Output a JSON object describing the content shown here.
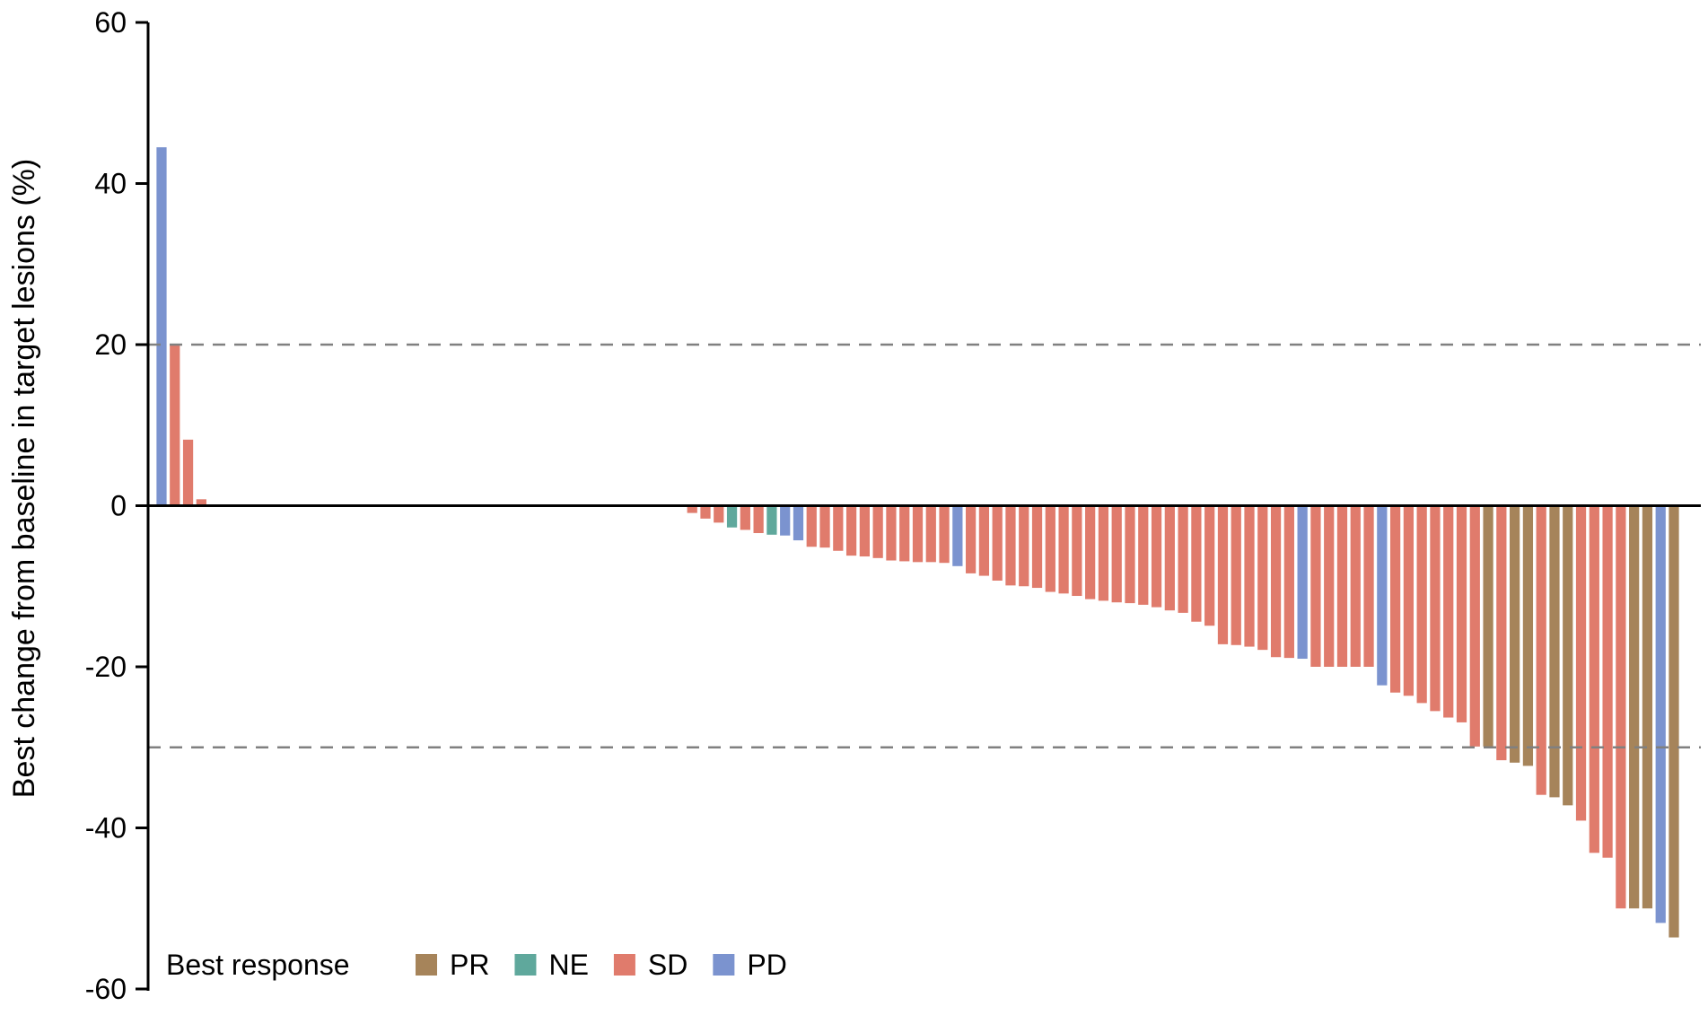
{
  "chart_data": {
    "type": "bar",
    "title": "",
    "xlabel": "",
    "ylabel": "Best change from baseline in target lesions (%)",
    "ylim": [
      -60,
      60
    ],
    "y_ticks": [
      -60,
      -40,
      -20,
      0,
      20,
      40,
      60
    ],
    "reference_lines": [
      20,
      -30
    ],
    "grid": false,
    "legend": {
      "title": "Best response",
      "placement": "bottom-left",
      "entries": [
        {
          "label": "PR",
          "color": "#a6845a"
        },
        {
          "label": "NE",
          "color": "#5fa89c"
        },
        {
          "label": "SD",
          "color": "#e07b6c"
        },
        {
          "label": "PD",
          "color": "#7b93cf"
        }
      ]
    },
    "bars": [
      {
        "v": 44.5,
        "r": "PD"
      },
      {
        "v": 20,
        "r": "SD"
      },
      {
        "v": 8.2,
        "r": "SD"
      },
      {
        "v": 0.8,
        "r": "SD"
      },
      {
        "v": 0,
        "r": "SD"
      },
      {
        "v": 0,
        "r": "SD"
      },
      {
        "v": 0,
        "r": "SD"
      },
      {
        "v": 0,
        "r": "SD"
      },
      {
        "v": 0,
        "r": "SD"
      },
      {
        "v": 0,
        "r": "SD"
      },
      {
        "v": 0,
        "r": "SD"
      },
      {
        "v": 0,
        "r": "SD"
      },
      {
        "v": 0,
        "r": "SD"
      },
      {
        "v": 0,
        "r": "SD"
      },
      {
        "v": 0,
        "r": "SD"
      },
      {
        "v": 0,
        "r": "SD"
      },
      {
        "v": 0,
        "r": "SD"
      },
      {
        "v": 0,
        "r": "SD"
      },
      {
        "v": 0,
        "r": "SD"
      },
      {
        "v": 0,
        "r": "SD"
      },
      {
        "v": 0,
        "r": "SD"
      },
      {
        "v": 0,
        "r": "SD"
      },
      {
        "v": 0,
        "r": "SD"
      },
      {
        "v": 0,
        "r": "SD"
      },
      {
        "v": 0,
        "r": "SD"
      },
      {
        "v": 0,
        "r": "SD"
      },
      {
        "v": 0,
        "r": "SD"
      },
      {
        "v": 0,
        "r": "SD"
      },
      {
        "v": 0,
        "r": "SD"
      },
      {
        "v": 0,
        "r": "SD"
      },
      {
        "v": 0,
        "r": "SD"
      },
      {
        "v": 0,
        "r": "SD"
      },
      {
        "v": 0,
        "r": "SD"
      },
      {
        "v": 0,
        "r": "SD"
      },
      {
        "v": 0,
        "r": "SD"
      },
      {
        "v": 0,
        "r": "SD"
      },
      {
        "v": 0,
        "r": "SD"
      },
      {
        "v": 0,
        "r": "SD"
      },
      {
        "v": 0,
        "r": "SD"
      },
      {
        "v": 0,
        "r": "SD"
      },
      {
        "v": -0.9,
        "r": "SD"
      },
      {
        "v": -1.6,
        "r": "SD"
      },
      {
        "v": -2.1,
        "r": "SD"
      },
      {
        "v": -2.7,
        "r": "NE"
      },
      {
        "v": -3.0,
        "r": "SD"
      },
      {
        "v": -3.4,
        "r": "SD"
      },
      {
        "v": -3.6,
        "r": "NE"
      },
      {
        "v": -3.7,
        "r": "PD"
      },
      {
        "v": -4.3,
        "r": "PD"
      },
      {
        "v": -5.1,
        "r": "SD"
      },
      {
        "v": -5.2,
        "r": "SD"
      },
      {
        "v": -5.6,
        "r": "SD"
      },
      {
        "v": -6.2,
        "r": "SD"
      },
      {
        "v": -6.3,
        "r": "SD"
      },
      {
        "v": -6.5,
        "r": "SD"
      },
      {
        "v": -6.8,
        "r": "SD"
      },
      {
        "v": -6.9,
        "r": "SD"
      },
      {
        "v": -7.0,
        "r": "SD"
      },
      {
        "v": -7.0,
        "r": "SD"
      },
      {
        "v": -7.1,
        "r": "SD"
      },
      {
        "v": -7.5,
        "r": "PD"
      },
      {
        "v": -8.4,
        "r": "SD"
      },
      {
        "v": -8.7,
        "r": "SD"
      },
      {
        "v": -9.3,
        "r": "SD"
      },
      {
        "v": -9.9,
        "r": "SD"
      },
      {
        "v": -10.0,
        "r": "SD"
      },
      {
        "v": -10.2,
        "r": "SD"
      },
      {
        "v": -10.7,
        "r": "SD"
      },
      {
        "v": -10.9,
        "r": "SD"
      },
      {
        "v": -11.2,
        "r": "SD"
      },
      {
        "v": -11.6,
        "r": "SD"
      },
      {
        "v": -11.8,
        "r": "SD"
      },
      {
        "v": -12.0,
        "r": "SD"
      },
      {
        "v": -12.1,
        "r": "SD"
      },
      {
        "v": -12.3,
        "r": "SD"
      },
      {
        "v": -12.6,
        "r": "SD"
      },
      {
        "v": -13.0,
        "r": "SD"
      },
      {
        "v": -13.3,
        "r": "SD"
      },
      {
        "v": -14.4,
        "r": "SD"
      },
      {
        "v": -14.9,
        "r": "SD"
      },
      {
        "v": -17.2,
        "r": "SD"
      },
      {
        "v": -17.3,
        "r": "SD"
      },
      {
        "v": -17.5,
        "r": "SD"
      },
      {
        "v": -17.9,
        "r": "SD"
      },
      {
        "v": -18.8,
        "r": "SD"
      },
      {
        "v": -18.9,
        "r": "SD"
      },
      {
        "v": -19.0,
        "r": "PD"
      },
      {
        "v": -20.0,
        "r": "SD"
      },
      {
        "v": -20.0,
        "r": "SD"
      },
      {
        "v": -20.0,
        "r": "SD"
      },
      {
        "v": -20.0,
        "r": "SD"
      },
      {
        "v": -20.0,
        "r": "SD"
      },
      {
        "v": -22.3,
        "r": "PD"
      },
      {
        "v": -23.2,
        "r": "SD"
      },
      {
        "v": -23.6,
        "r": "SD"
      },
      {
        "v": -24.5,
        "r": "SD"
      },
      {
        "v": -25.5,
        "r": "SD"
      },
      {
        "v": -26.3,
        "r": "SD"
      },
      {
        "v": -26.9,
        "r": "SD"
      },
      {
        "v": -29.9,
        "r": "SD"
      },
      {
        "v": -29.9,
        "r": "PR"
      },
      {
        "v": -31.6,
        "r": "SD"
      },
      {
        "v": -31.9,
        "r": "PR"
      },
      {
        "v": -32.3,
        "r": "PR"
      },
      {
        "v": -35.9,
        "r": "SD"
      },
      {
        "v": -36.2,
        "r": "PR"
      },
      {
        "v": -37.2,
        "r": "PR"
      },
      {
        "v": -39.1,
        "r": "SD"
      },
      {
        "v": -43.1,
        "r": "SD"
      },
      {
        "v": -43.7,
        "r": "SD"
      },
      {
        "v": -50.0,
        "r": "SD"
      },
      {
        "v": -50.0,
        "r": "PR"
      },
      {
        "v": -50.0,
        "r": "PR"
      },
      {
        "v": -51.8,
        "r": "PD"
      },
      {
        "v": -53.6,
        "r": "PR"
      }
    ]
  }
}
